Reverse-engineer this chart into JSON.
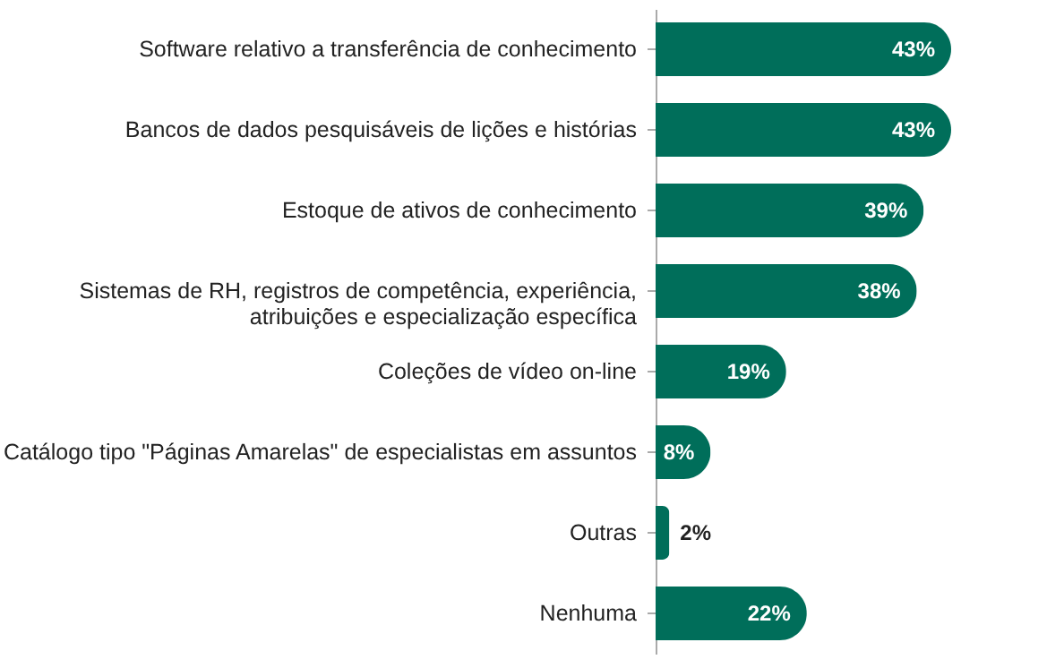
{
  "chart_data": {
    "type": "bar",
    "orientation": "horizontal",
    "categories": [
      "Software relativo a transferência de conhecimento",
      "Bancos de dados pesquisáveis de lições e histórias",
      "Estoque de ativos de conhecimento",
      "Sistemas de RH, registros  de competência, experiência, atribuições e especialização específica",
      "Coleções de vídeo on-line",
      "Catálogo tipo \"Páginas Amarelas\" de especialistas em assuntos",
      "Outras",
      "Nenhuma"
    ],
    "values": [
      43,
      43,
      39,
      38,
      19,
      8,
      2,
      22
    ],
    "value_labels": [
      "43%",
      "43%",
      "39%",
      "38%",
      "19%",
      "8%",
      "2%",
      "22%"
    ],
    "color": "#006e5a",
    "grid": false
  }
}
